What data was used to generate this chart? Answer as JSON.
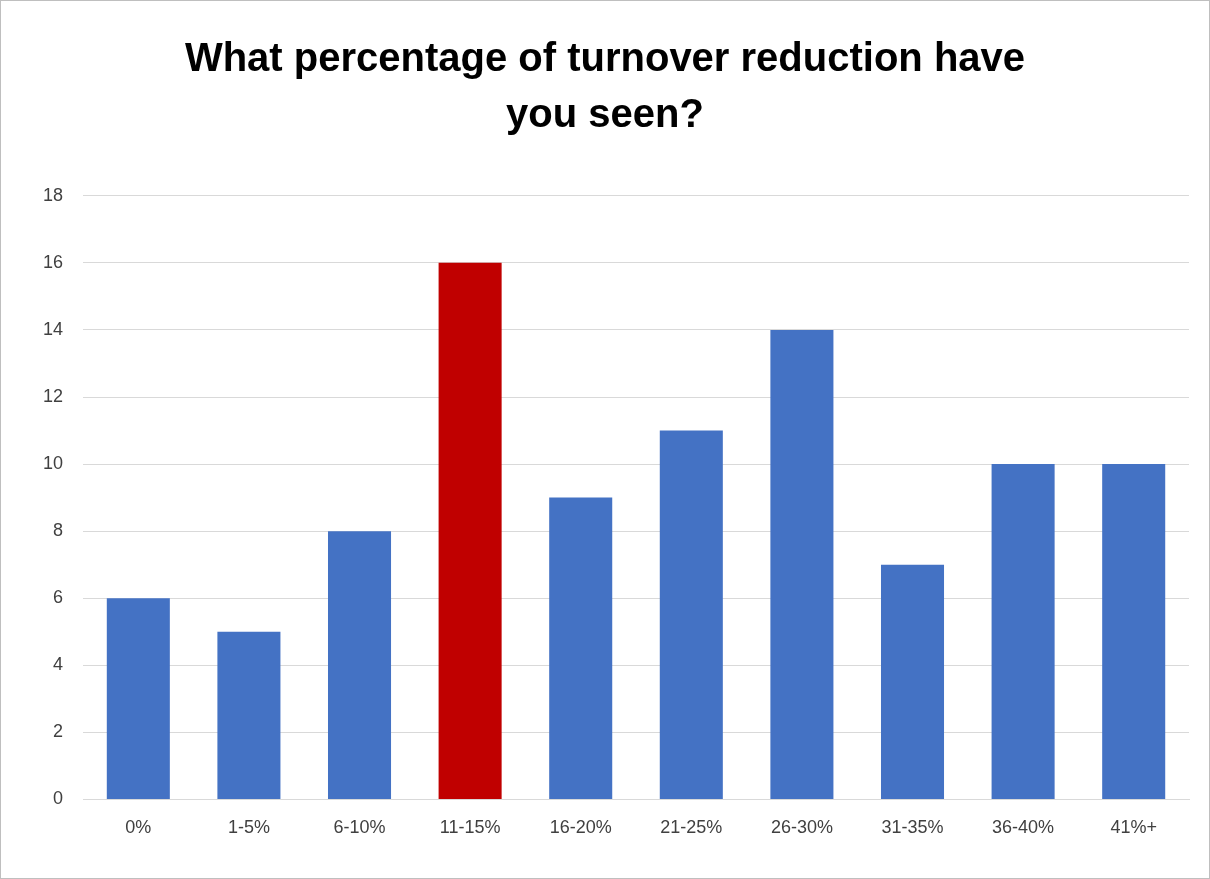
{
  "chart_data": {
    "type": "bar",
    "title": "What percentage of turnover reduction have you seen?",
    "categories": [
      "0%",
      "1-5%",
      "6-10%",
      "11-15%",
      "16-20%",
      "21-25%",
      "26-30%",
      "31-35%",
      "36-40%",
      "41%+"
    ],
    "values": [
      6,
      5,
      8,
      16,
      9,
      11,
      14,
      7,
      10,
      10
    ],
    "colors": [
      "#4472c4",
      "#4472c4",
      "#4472c4",
      "#c00000",
      "#4472c4",
      "#4472c4",
      "#4472c4",
      "#4472c4",
      "#4472c4",
      "#4472c4"
    ],
    "ylim": [
      0,
      18
    ],
    "yticks": [
      0,
      2,
      4,
      6,
      8,
      10,
      12,
      14,
      16,
      18
    ],
    "grid": "y"
  }
}
